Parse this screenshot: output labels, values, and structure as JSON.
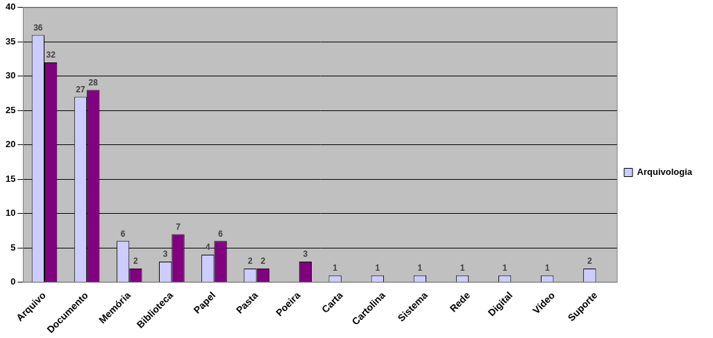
{
  "chart_data": {
    "type": "bar",
    "categories": [
      "Arquivo",
      "Documento",
      "Memória",
      "Biblioteca",
      "Papel",
      "Pasta",
      "Poeira",
      "Carta",
      "Cartolina",
      "Sistema",
      "Rede",
      "Digital",
      "Vídeo",
      "Suporte"
    ],
    "series": [
      {
        "name": "Arquivologia",
        "color": "#ccccff",
        "values": [
          36,
          27,
          6,
          3,
          4,
          2,
          null,
          1,
          1,
          1,
          1,
          1,
          1,
          2
        ]
      },
      {
        "color": "#800080",
        "values": [
          32,
          28,
          2,
          7,
          6,
          2,
          3,
          null,
          null,
          null,
          null,
          null,
          null,
          null
        ]
      }
    ],
    "ylim": [
      0,
      40
    ],
    "yticks": [
      0,
      5,
      10,
      15,
      20,
      25,
      30,
      35,
      40
    ],
    "grid": true,
    "legend": "right",
    "data_labels": true
  }
}
